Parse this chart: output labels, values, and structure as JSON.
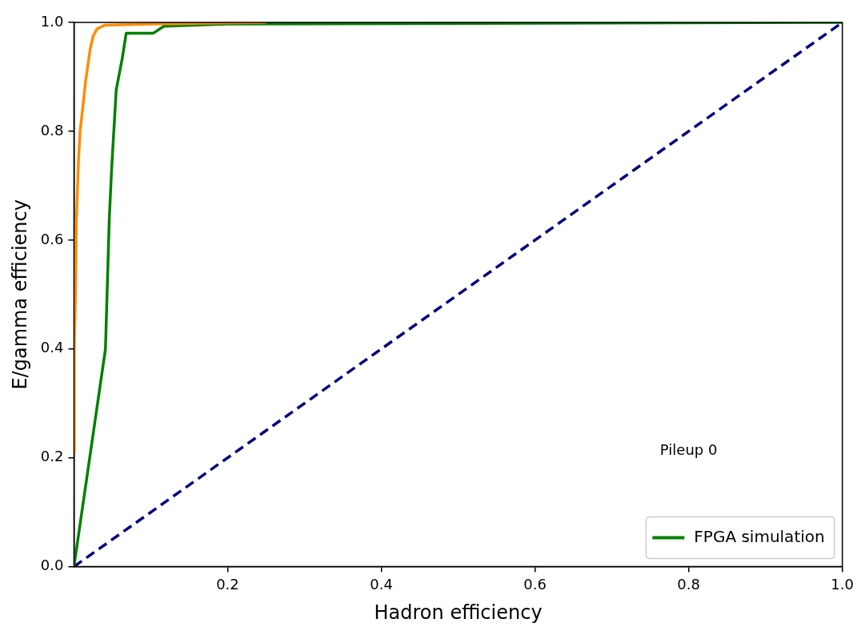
{
  "chart_data": {
    "type": "line",
    "xlabel": "Hadron efficiency",
    "ylabel": "E/gamma efficiency",
    "xlim": [
      0,
      1
    ],
    "ylim": [
      0,
      1
    ],
    "xticks": [
      {
        "value": 0.2,
        "label": "0.2"
      },
      {
        "value": 0.4,
        "label": "0.4"
      },
      {
        "value": 0.6,
        "label": "0.6"
      },
      {
        "value": 0.8,
        "label": "0.8"
      },
      {
        "value": 1,
        "label": "1.0"
      }
    ],
    "yticks": [
      {
        "value": 0,
        "label": "0.0"
      },
      {
        "value": 0.2,
        "label": "0.2"
      },
      {
        "value": 0.4,
        "label": "0.4"
      },
      {
        "value": 0.6,
        "label": "0.6"
      },
      {
        "value": 0.8,
        "label": "0.8"
      },
      {
        "value": 1,
        "label": "1.0"
      }
    ],
    "grid": false,
    "legend": "bottom right",
    "marker": "none",
    "annotations": [
      "Pileup 0"
    ],
    "series": [
      {
        "color": "#ff8c00",
        "x": [
          0,
          0.0005,
          0.002,
          0.003,
          0.006,
          0.008,
          0.012,
          0.015,
          0.018,
          0.021,
          0.025,
          0.03,
          0.04,
          0.1,
          0.25
        ],
        "values": [
          0.21,
          0.41,
          0.5,
          0.63,
          0.75,
          0.8,
          0.85,
          0.89,
          0.92,
          0.95,
          0.975,
          0.988,
          0.995,
          0.997,
          1
        ]
      },
      {
        "name": "FPGA simulation",
        "color": "#008000",
        "x": [
          0,
          0.041,
          0.046,
          0.049,
          0.055,
          0.063,
          0.068,
          0.103,
          0.117,
          0.2,
          1
        ],
        "values": [
          0,
          0.4,
          0.64,
          0.73,
          0.876,
          0.935,
          0.98,
          0.98,
          0.993,
          0.997,
          1
        ]
      },
      {
        "color": "#000080",
        "line_style": "dashed",
        "x": [
          0,
          1
        ],
        "values": [
          0,
          1
        ]
      }
    ]
  }
}
